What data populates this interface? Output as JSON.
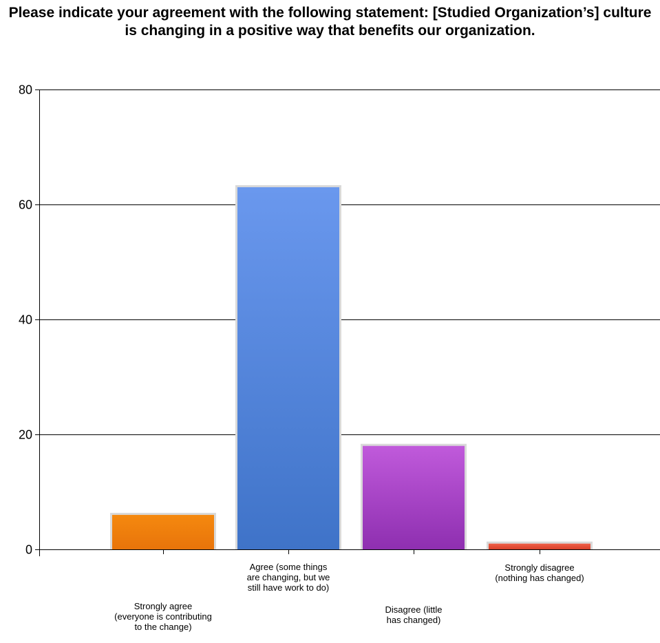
{
  "chart_data": {
    "type": "bar",
    "title": "Please indicate your agreement with the following statement: [Studied Organization’s] culture is changing in a positive way that benefits our organization.",
    "xlabel": "",
    "ylabel": "",
    "ylim": [
      0,
      80
    ],
    "yticks": [
      0,
      20,
      40,
      60,
      80
    ],
    "grid": true,
    "categories": [
      "Strongly agree (everyone is contributing to the change)",
      "Agree (some things are changing, but we still have work to do)",
      "Disagree (little has changed)",
      "Strongly disagree (nothing has changed)"
    ],
    "category_label_lines": [
      [
        "Strongly agree",
        "(everyone is contributing",
        "to the change)"
      ],
      [
        "Agree (some things",
        "are changing, but we",
        "still have work to do)"
      ],
      [
        "Disagree (little",
        "has changed)"
      ],
      [
        "Strongly disagree",
        "(nothing has changed)"
      ]
    ],
    "values": [
      6,
      63,
      18,
      1
    ],
    "colors": [
      [
        "#F5890F",
        "#E8740A"
      ],
      [
        "#6A98EE",
        "#3F73C8"
      ],
      [
        "#C05ADB",
        "#8E2FB0"
      ],
      [
        "#F06048",
        "#D8402A"
      ]
    ]
  }
}
